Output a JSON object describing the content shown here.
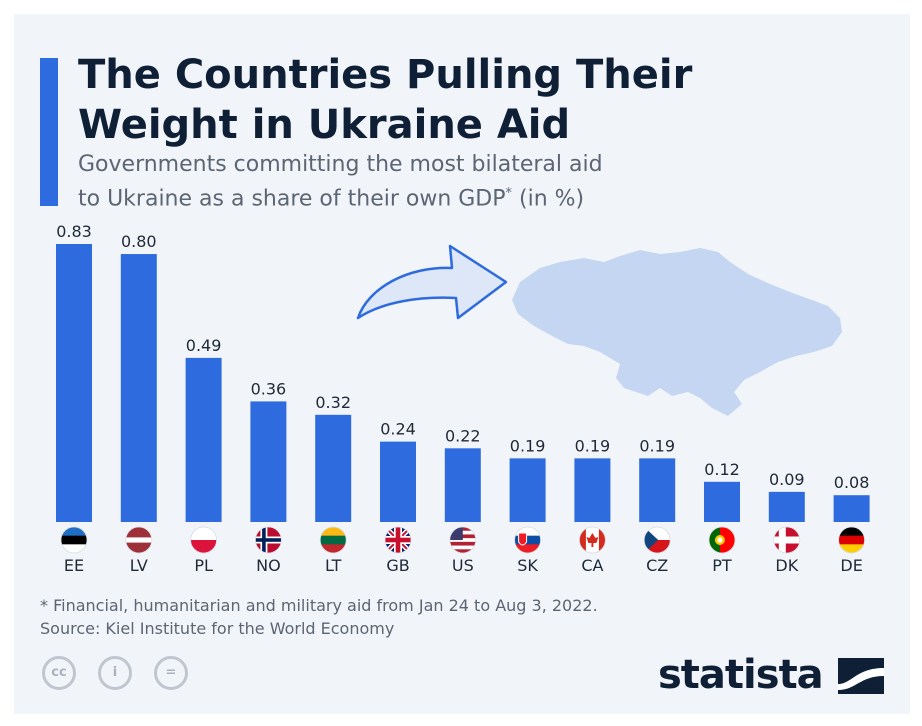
{
  "title_line1": "The Countries Pulling Their",
  "title_line2": "Weight in Ukraine Aid",
  "subtitle_line1": "Governments committing the most bilateral aid",
  "subtitle_line2": "to Ukraine as a share of their own GDP",
  "subtitle_sup": "*",
  "subtitle_end": " (in %)",
  "footnote": "* Financial, humanitarian and military aid from Jan 24 to Aug 3, 2022.",
  "source": "Source: Kiel Institute for the World Economy",
  "brand": "statista",
  "license_icons": [
    "cc",
    "i",
    "="
  ],
  "colors": {
    "bar": "#2e6bdf",
    "map": "#c5d6f2",
    "accent": "#2e6bdf",
    "title": "#0e1f36"
  },
  "chart_data": {
    "type": "bar",
    "categories": [
      "EE",
      "LV",
      "PL",
      "NO",
      "LT",
      "GB",
      "US",
      "SK",
      "CA",
      "CZ",
      "PT",
      "DK",
      "DE"
    ],
    "values": [
      0.83,
      0.8,
      0.49,
      0.36,
      0.32,
      0.24,
      0.22,
      0.19,
      0.19,
      0.19,
      0.12,
      0.09,
      0.08
    ],
    "value_labels": [
      "0.83",
      "0.80",
      "0.49",
      "0.36",
      "0.32",
      "0.24",
      "0.22",
      "0.19",
      "0.19",
      "0.19",
      "0.12",
      "0.09",
      "0.08"
    ],
    "title": "The Countries Pulling Their Weight in Ukraine Aid",
    "xlabel": "",
    "ylabel": "",
    "ylim": [
      0,
      0.83
    ],
    "grid": false,
    "legend": "none"
  }
}
